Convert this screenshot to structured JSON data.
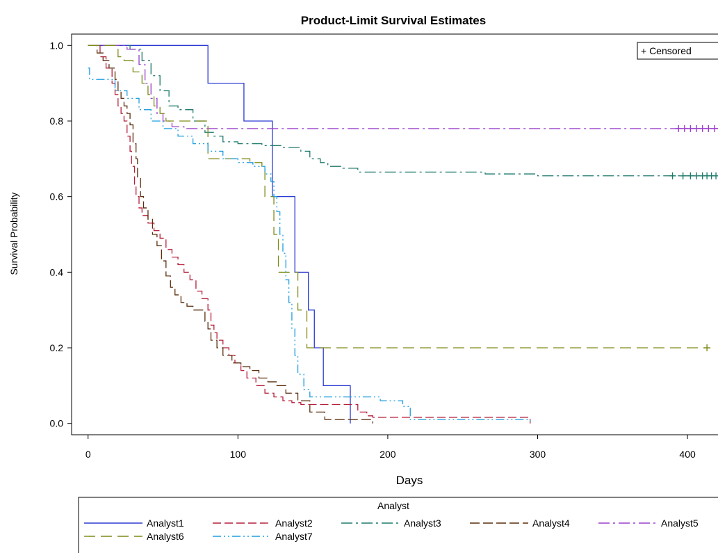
{
  "chart_data": {
    "type": "line",
    "title": "Product-Limit Survival Estimates",
    "xlabel": "Days",
    "ylabel": "Survival Probability",
    "xlim": [
      -11,
      425
    ],
    "ylim": [
      -0.03,
      1.03
    ],
    "xticks": [
      0,
      100,
      200,
      300,
      400
    ],
    "xtick_labels": [
      "0",
      "100",
      "200",
      "300",
      "400"
    ],
    "yticks": [
      0.0,
      0.2,
      0.4,
      0.6,
      0.8,
      1.0
    ],
    "ytick_labels": [
      "0.0",
      "0.2",
      "0.4",
      "0.6",
      "0.8",
      "1.0"
    ],
    "grid": false,
    "censored_legend": "+ Censored",
    "legend_title": "Analyst",
    "legend_position": "bottom",
    "series": [
      {
        "name": "Analyst1",
        "color": "#2b3bd3",
        "dash": "",
        "x": [
          0,
          80,
          80,
          104,
          104,
          123,
          123,
          138,
          138,
          147,
          147,
          151,
          151,
          157,
          157,
          175,
          175
        ],
        "y": [
          1.0,
          1.0,
          0.9,
          0.9,
          0.8,
          0.8,
          0.6,
          0.6,
          0.4,
          0.4,
          0.3,
          0.3,
          0.2,
          0.2,
          0.1,
          0.1,
          0.0
        ],
        "censored": []
      },
      {
        "name": "Analyst2",
        "color": "#b51f3a",
        "dash": "12,5",
        "x": [
          0,
          8,
          12,
          16,
          18,
          20,
          22,
          24,
          26,
          28,
          29,
          31,
          32,
          34,
          36,
          40,
          44,
          48,
          52,
          56,
          60,
          64,
          68,
          72,
          76,
          80,
          82,
          84,
          86,
          90,
          94,
          98,
          102,
          106,
          112,
          118,
          124,
          130,
          136,
          142,
          150,
          160,
          170,
          180,
          186,
          190,
          220,
          250,
          280,
          295
        ],
        "y": [
          1.0,
          0.97,
          0.94,
          0.9,
          0.87,
          0.84,
          0.82,
          0.8,
          0.76,
          0.72,
          0.68,
          0.63,
          0.6,
          0.57,
          0.55,
          0.53,
          0.51,
          0.49,
          0.46,
          0.44,
          0.42,
          0.4,
          0.38,
          0.35,
          0.33,
          0.3,
          0.26,
          0.24,
          0.22,
          0.2,
          0.18,
          0.16,
          0.14,
          0.12,
          0.1,
          0.08,
          0.07,
          0.06,
          0.055,
          0.05,
          0.05,
          0.05,
          0.05,
          0.03,
          0.02,
          0.016,
          0.016,
          0.016,
          0.016,
          0.0
        ],
        "censored": []
      },
      {
        "name": "Analyst3",
        "color": "#1d7a6b",
        "dash": "16,5,3,5",
        "x": [
          0,
          14,
          28,
          36,
          42,
          48,
          54,
          60,
          70,
          78,
          84,
          90,
          100,
          116,
          130,
          142,
          148,
          155,
          160,
          170,
          180,
          200,
          240,
          265,
          300,
          350,
          400,
          425
        ],
        "y": [
          1.0,
          1.0,
          0.99,
          0.96,
          0.92,
          0.88,
          0.84,
          0.83,
          0.8,
          0.77,
          0.76,
          0.745,
          0.74,
          0.735,
          0.73,
          0.72,
          0.7,
          0.69,
          0.68,
          0.675,
          0.665,
          0.665,
          0.665,
          0.66,
          0.655,
          0.655,
          0.655,
          0.655
        ],
        "censored": [
          [
            390,
            0.655
          ],
          [
            397,
            0.655
          ],
          [
            402,
            0.655
          ],
          [
            406,
            0.655
          ],
          [
            410,
            0.655
          ],
          [
            413,
            0.655
          ],
          [
            416,
            0.655
          ],
          [
            419,
            0.655
          ],
          [
            422,
            0.655
          ]
        ]
      },
      {
        "name": "Analyst4",
        "color": "#5a2d0c",
        "dash": "14,5",
        "x": [
          0,
          6,
          10,
          14,
          18,
          20,
          22,
          24,
          26,
          28,
          30,
          32,
          33,
          35,
          37,
          40,
          43,
          46,
          49,
          52,
          55,
          58,
          62,
          66,
          70,
          74,
          78,
          80,
          82,
          86,
          90,
          96,
          102,
          108,
          114,
          120,
          126,
          132,
          140,
          148,
          158,
          168,
          178,
          190
        ],
        "y": [
          1.0,
          0.98,
          0.96,
          0.94,
          0.91,
          0.88,
          0.86,
          0.84,
          0.82,
          0.79,
          0.74,
          0.7,
          0.65,
          0.6,
          0.57,
          0.54,
          0.5,
          0.47,
          0.43,
          0.39,
          0.36,
          0.34,
          0.32,
          0.31,
          0.3,
          0.3,
          0.27,
          0.25,
          0.22,
          0.2,
          0.18,
          0.16,
          0.15,
          0.14,
          0.12,
          0.11,
          0.1,
          0.08,
          0.06,
          0.03,
          0.01,
          0.01,
          0.01,
          0.0
        ],
        "censored": []
      },
      {
        "name": "Analyst5",
        "color": "#9b3dcc",
        "dash": "16,5,3,5",
        "x": [
          0,
          16,
          26,
          34,
          38,
          42,
          46,
          50,
          56,
          64,
          80,
          120,
          200,
          300,
          400,
          425
        ],
        "y": [
          1.0,
          1.0,
          0.99,
          0.95,
          0.9,
          0.86,
          0.82,
          0.8,
          0.785,
          0.78,
          0.78,
          0.78,
          0.78,
          0.78,
          0.78,
          0.78
        ],
        "censored": [
          [
            394,
            0.78
          ],
          [
            398,
            0.78
          ],
          [
            402,
            0.78
          ],
          [
            406,
            0.78
          ],
          [
            410,
            0.78
          ],
          [
            414,
            0.78
          ],
          [
            418,
            0.78
          ],
          [
            422,
            0.78
          ]
        ]
      },
      {
        "name": "Analyst6",
        "color": "#7d8a16",
        "dash": "16,8",
        "x": [
          0,
          14,
          20,
          24,
          30,
          36,
          40,
          44,
          48,
          52,
          58,
          66,
          74,
          80,
          80,
          94,
          100,
          108,
          116,
          118,
          118,
          124,
          124,
          127,
          127,
          140,
          140,
          146,
          146,
          300,
          415
        ],
        "y": [
          1.0,
          1.0,
          0.97,
          0.96,
          0.93,
          0.9,
          0.87,
          0.84,
          0.82,
          0.8,
          0.8,
          0.8,
          0.8,
          0.8,
          0.7,
          0.7,
          0.7,
          0.69,
          0.68,
          0.67,
          0.6,
          0.6,
          0.5,
          0.5,
          0.4,
          0.4,
          0.3,
          0.3,
          0.2,
          0.2,
          0.2
        ],
        "censored": [
          [
            413,
            0.2
          ]
        ]
      },
      {
        "name": "Analyst7",
        "color": "#1e9de0",
        "dash": "12,4,2,4,2,4",
        "x": [
          0,
          1,
          10,
          18,
          26,
          34,
          42,
          50,
          60,
          70,
          80,
          90,
          100,
          110,
          118,
          122,
          124,
          126,
          128,
          130,
          132,
          134,
          136,
          138,
          140,
          144,
          148,
          170,
          195,
          210,
          215,
          240,
          290,
          295
        ],
        "y": [
          0.94,
          0.91,
          0.91,
          0.88,
          0.86,
          0.83,
          0.8,
          0.78,
          0.76,
          0.74,
          0.72,
          0.7,
          0.69,
          0.68,
          0.66,
          0.64,
          0.6,
          0.56,
          0.5,
          0.45,
          0.38,
          0.32,
          0.25,
          0.18,
          0.13,
          0.09,
          0.07,
          0.07,
          0.06,
          0.045,
          0.01,
          0.01,
          0.01,
          0.0
        ],
        "censored": []
      }
    ]
  }
}
